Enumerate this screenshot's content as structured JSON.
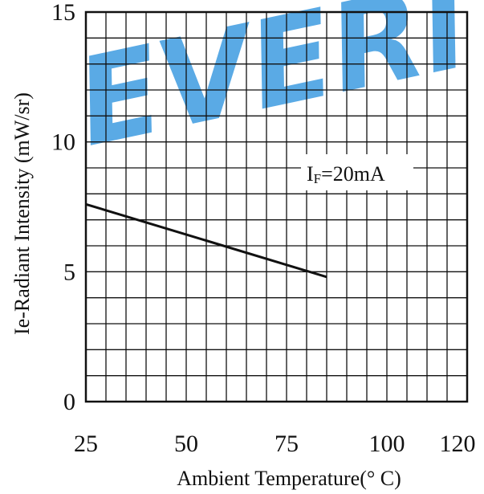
{
  "watermark": {
    "text": "EVERI",
    "color": "#3d9be0"
  },
  "chart_data": {
    "type": "line",
    "title": "",
    "xlabel": "Ambient Temperature(° C)",
    "ylabel": "Ie-Radiant Intensity (mW/sr)",
    "xlim": [
      25,
      120
    ],
    "ylim": [
      0,
      15
    ],
    "x_ticks": [
      "25",
      "50",
      "75",
      "100",
      "120"
    ],
    "y_ticks": [
      "0",
      "5",
      "10",
      "15"
    ],
    "grid": true,
    "annotation": {
      "main": "I",
      "sub": "F",
      "rest": "=20mA"
    },
    "series": [
      {
        "x": [
          25,
          85
        ],
        "y": [
          7.6,
          4.8
        ],
        "color": "#111111"
      }
    ]
  }
}
